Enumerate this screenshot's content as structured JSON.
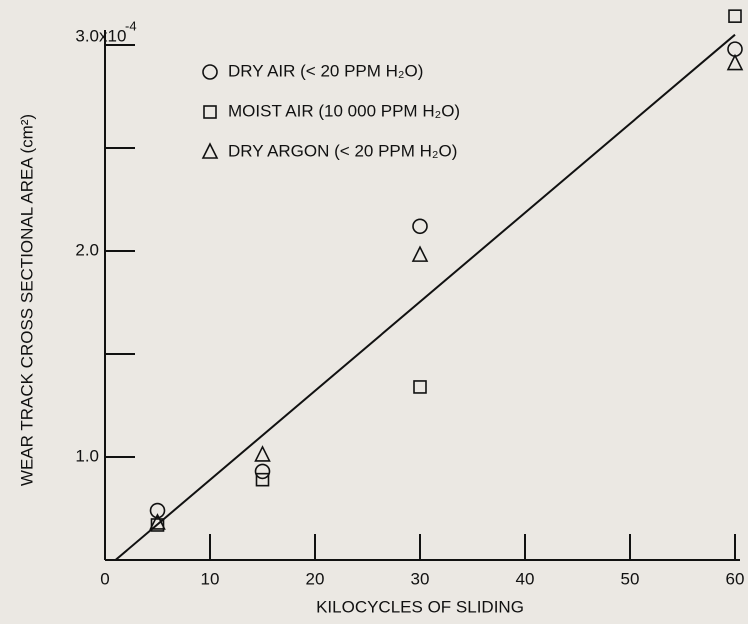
{
  "chart_data": {
    "type": "scatter",
    "x_label": "KILOCYCLES OF SLIDING",
    "y_label": "WEAR TRACK CROSS SECTIONAL AREA (cm²)",
    "y_multiplier": "x10",
    "y_exponent": "-4",
    "xlim": [
      0,
      60
    ],
    "xticks": [
      0,
      10,
      20,
      30,
      40,
      50,
      60
    ],
    "ylim": [
      0.5,
      3.0
    ],
    "yticks": [
      {
        "value": 1,
        "label": "1.0"
      },
      {
        "value": 2,
        "label": "2.0"
      },
      {
        "value": 3,
        "label": "3.0"
      }
    ],
    "yminor_ticks": [
      1.5,
      2.5
    ],
    "series": [
      {
        "name": "DRY AIR (< 20 PPM H₂O)",
        "marker": "circle",
        "color": "#111111",
        "x": [
          5,
          15,
          30,
          60
        ],
        "values": [
          0.74,
          0.93,
          2.12,
          2.98
        ]
      },
      {
        "name": "MOIST AIR (10 000 PPM H₂O)",
        "marker": "square",
        "color": "#111111",
        "x": [
          5,
          15,
          30,
          60
        ],
        "values": [
          0.67,
          0.89,
          1.34,
          3.14
        ]
      },
      {
        "name": "DRY ARGON (< 20 PPM H₂O)",
        "marker": "triangle",
        "color": "#111111",
        "x": [
          5,
          15,
          30,
          60
        ],
        "values": [
          0.68,
          1.01,
          1.98,
          2.91
        ]
      }
    ],
    "fit_line": {
      "x": [
        1,
        60
      ],
      "values": [
        0.5,
        3.05
      ]
    }
  }
}
